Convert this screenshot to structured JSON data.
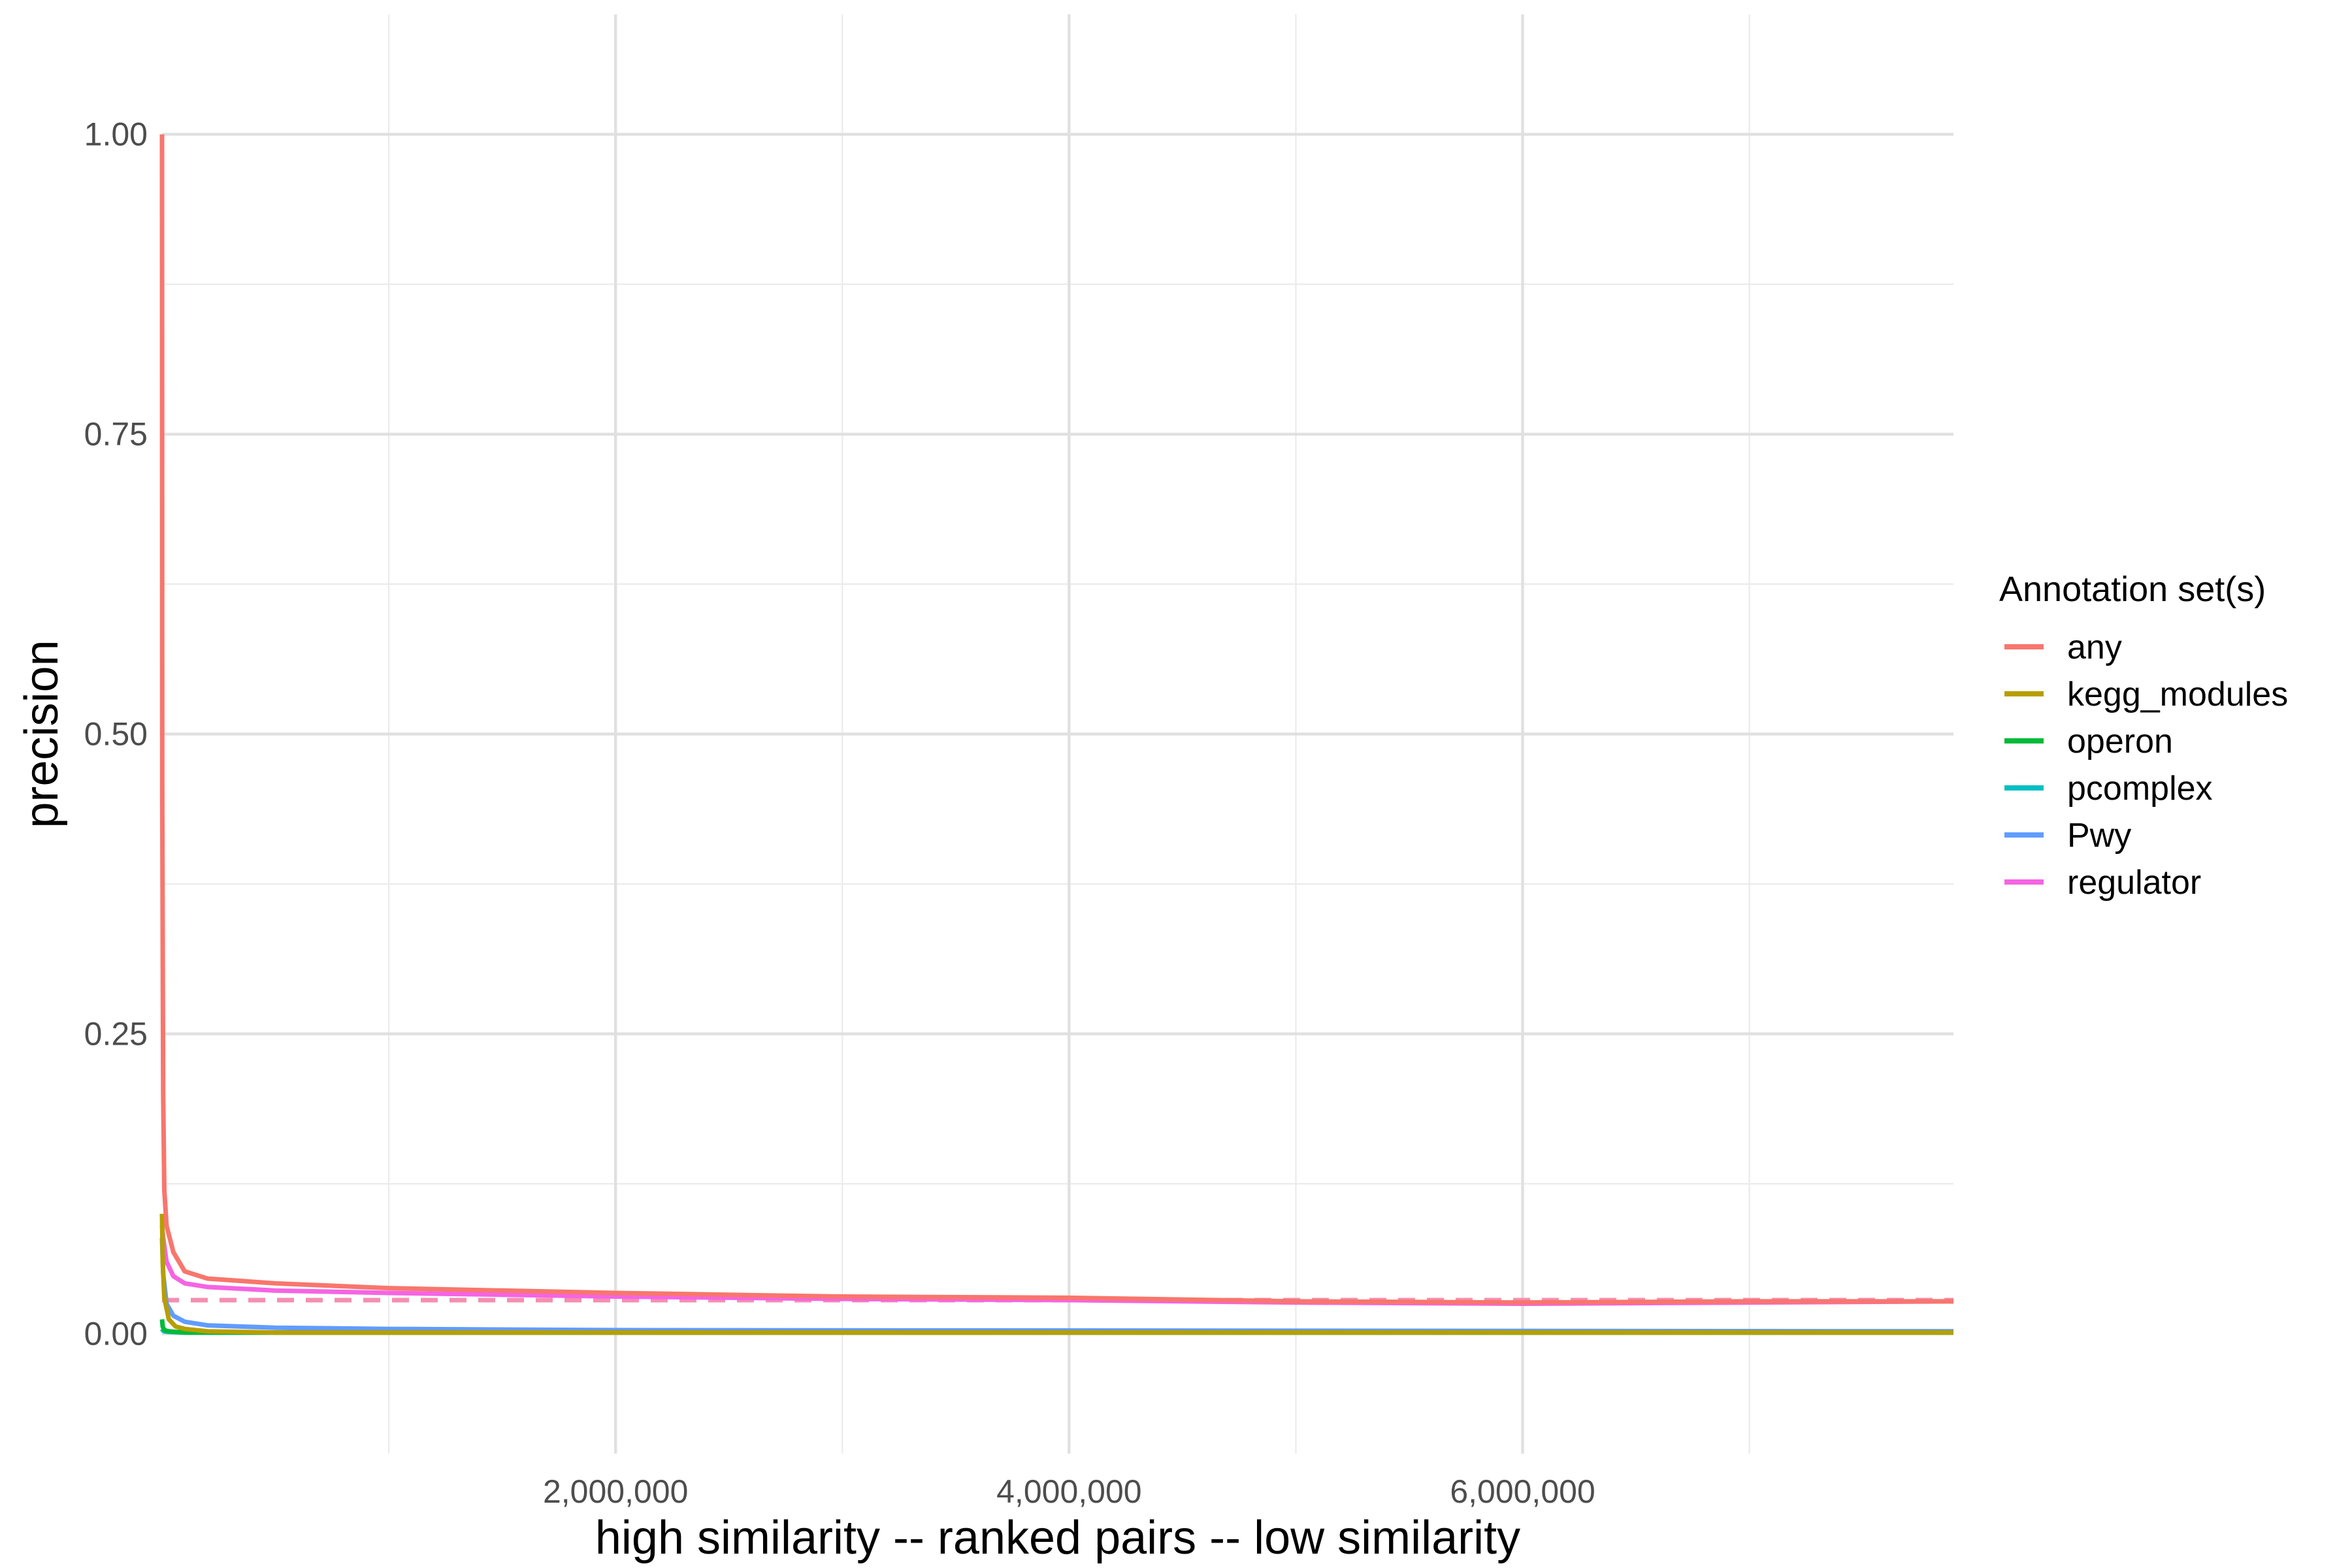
{
  "chart_data": {
    "type": "line",
    "xlabel": "high similarity -- ranked pairs -- low similarity",
    "ylabel": "precision",
    "xlim": [
      0,
      7900000
    ],
    "ylim": [
      -0.1,
      1.1
    ],
    "x_ticks": [
      2000000,
      4000000,
      6000000
    ],
    "x_tick_labels": [
      "2,000,000",
      "4,000,000",
      "6,000,000"
    ],
    "x_minor_ticks": [
      1000000,
      3000000,
      5000000,
      7000000
    ],
    "y_ticks": [
      0,
      0.25,
      0.5,
      0.75,
      1.0
    ],
    "y_tick_labels": [
      "0.00",
      "0.25",
      "0.50",
      "0.75",
      "1.00"
    ],
    "y_minor_ticks": [
      0.125,
      0.375,
      0.625,
      0.875
    ],
    "grid": true,
    "legend": {
      "title": "Annotation set(s)",
      "position": "right"
    },
    "series": [
      {
        "name": "any",
        "color": "#F8766D",
        "x": [
          0,
          1000,
          5000,
          10000,
          20000,
          50000,
          100000,
          200000,
          500000,
          1000000,
          2000000,
          3000000,
          4000000,
          5000000,
          6000000,
          7000000,
          7900000
        ],
        "y": [
          1.0,
          0.45,
          0.2,
          0.12,
          0.09,
          0.068,
          0.052,
          0.046,
          0.042,
          0.038,
          0.034,
          0.031,
          0.03,
          0.027,
          0.026,
          0.027,
          0.027
        ]
      },
      {
        "name": "kegg_modules",
        "color": "#B79F00",
        "x": [
          0,
          3000,
          10000,
          30000,
          60000,
          100000,
          200000,
          500000,
          1000000,
          7900000
        ],
        "y": [
          0.1,
          0.06,
          0.03,
          0.012,
          0.006,
          0.004,
          0.002,
          0.001,
          0.001,
          0.001
        ]
      },
      {
        "name": "operon",
        "color": "#00BA38",
        "x": [
          0,
          3000,
          10000,
          30000,
          60000,
          100000,
          300000,
          7900000
        ],
        "y": [
          0.012,
          0.006,
          0.003,
          0.002,
          0.0015,
          0.001,
          0.001,
          0.001
        ]
      },
      {
        "name": "pcomplex",
        "color": "#00BFC4",
        "x": [
          0,
          3000,
          10000,
          30000,
          100000,
          7900000
        ],
        "y": [
          0.004,
          0.003,
          0.002,
          0.0015,
          0.001,
          0.001
        ]
      },
      {
        "name": "Pwy",
        "color": "#619CFF",
        "x": [
          0,
          5000,
          20000,
          50000,
          100000,
          200000,
          500000,
          1000000,
          2000000,
          7900000
        ],
        "y": [
          0.08,
          0.05,
          0.025,
          0.015,
          0.01,
          0.007,
          0.005,
          0.004,
          0.003,
          0.002
        ]
      },
      {
        "name": "regulator",
        "color": "#F564E3",
        "x": [
          0,
          5000,
          20000,
          50000,
          100000,
          200000,
          500000,
          1000000,
          2000000,
          3000000,
          4000000,
          5000000,
          6000000,
          7000000,
          7900000
        ],
        "y": [
          0.09,
          0.08,
          0.06,
          0.048,
          0.042,
          0.039,
          0.036,
          0.034,
          0.031,
          0.029,
          0.028,
          0.026,
          0.025,
          0.026,
          0.027
        ]
      }
    ],
    "reference_line": {
      "y": 0.028,
      "style": "dashed",
      "color": "#F48FB1"
    }
  }
}
